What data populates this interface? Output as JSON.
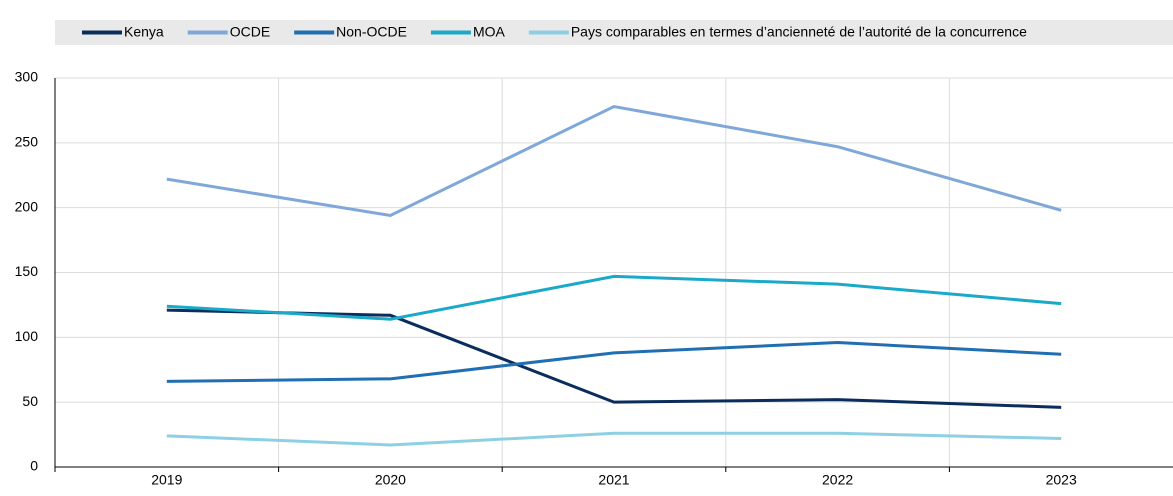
{
  "chart_data": {
    "type": "line",
    "categories": [
      "2019",
      "2020",
      "2021",
      "2022",
      "2023"
    ],
    "series": [
      {
        "name": "Kenya",
        "color": "#0b2d5b",
        "values": [
          121,
          117,
          50,
          52,
          46
        ]
      },
      {
        "name": "OCDE",
        "color": "#7fa8d9",
        "values": [
          222,
          194,
          278,
          247,
          198
        ]
      },
      {
        "name": "Non-OCDE",
        "color": "#1f6fb2",
        "values": [
          66,
          68,
          88,
          96,
          87
        ]
      },
      {
        "name": "MOA",
        "color": "#1aa9c9",
        "values": [
          124,
          114,
          147,
          141,
          126
        ]
      },
      {
        "name": "Pays comparables en termes d’ancienneté de l’autorité de la concurrence",
        "color": "#8dd0e4",
        "values": [
          24,
          17,
          26,
          26,
          22
        ]
      }
    ],
    "ylim": [
      0,
      300
    ],
    "yticks": [
      0,
      50,
      100,
      150,
      200,
      250,
      300
    ],
    "grid": true,
    "legend": "top"
  }
}
